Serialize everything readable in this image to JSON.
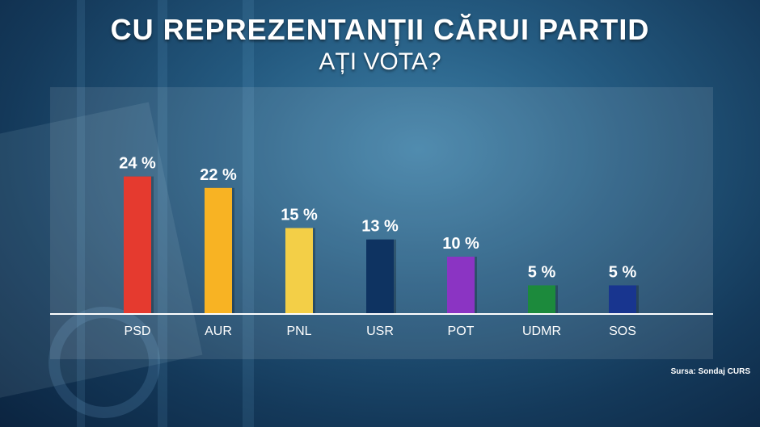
{
  "header": {
    "title": "CU REPREZENTANȚII CĂRUI PARTID",
    "subtitle": "AȚI VOTA?"
  },
  "source": "Sursa: Sondaj CURS",
  "chart_data": {
    "type": "bar",
    "categories": [
      "PSD",
      "AUR",
      "PNL",
      "USR",
      "POT",
      "UDMR",
      "SOS"
    ],
    "values": [
      24,
      22,
      15,
      13,
      10,
      5,
      5
    ],
    "value_labels": [
      "24 %",
      "22 %",
      "15 %",
      "13 %",
      "10 %",
      "5 %",
      "5 %"
    ],
    "colors": [
      "#e53a2f",
      "#f8b323",
      "#f3cf47",
      "#0e3361",
      "#8b34c3",
      "#1c8a3c",
      "#18358f"
    ],
    "title": "CU REPREZENTANȚII CĂRUI PARTID AȚI VOTA?",
    "xlabel": "",
    "ylabel": "",
    "grid": false
  }
}
